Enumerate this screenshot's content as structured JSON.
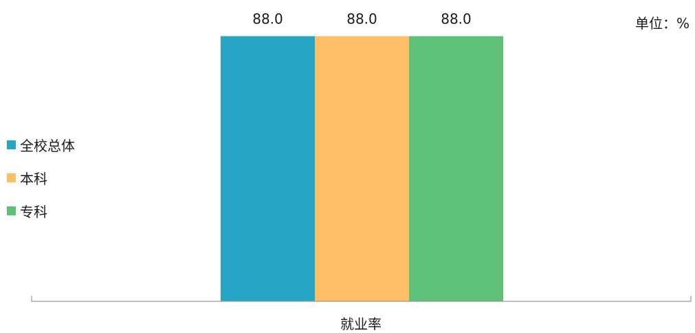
{
  "chart_data": {
    "type": "bar",
    "categories": [
      "就业率"
    ],
    "series": [
      {
        "name": "全校总体",
        "values": [
          88.0
        ],
        "color": "#26A5C4"
      },
      {
        "name": "本科",
        "values": [
          88.0
        ],
        "color": "#FDBF66"
      },
      {
        "name": "专科",
        "values": [
          88.0
        ],
        "color": "#5FC177"
      }
    ],
    "unit": "单位：%",
    "data_labels": [
      "88.0",
      "88.0",
      "88.0"
    ],
    "ylim": [
      0,
      100
    ],
    "grid": false,
    "legend_position": "left"
  }
}
